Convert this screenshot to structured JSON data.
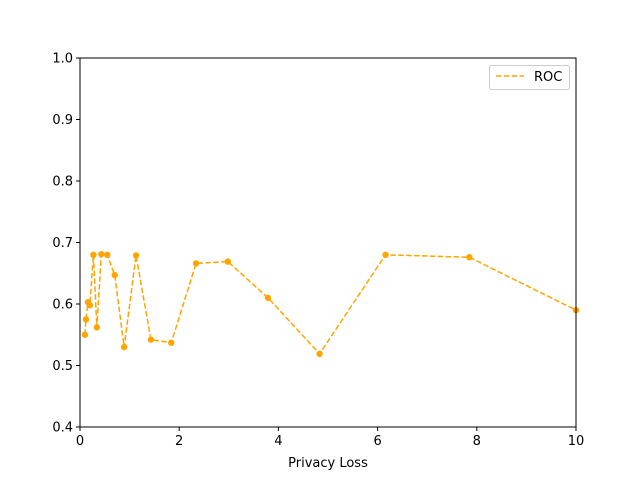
{
  "chart_data": {
    "type": "line",
    "xlabel": "Privacy Loss",
    "ylabel": "",
    "xlim": [
      0,
      10
    ],
    "ylim": [
      0.4,
      1.0
    ],
    "x_ticks": [
      0,
      2,
      4,
      6,
      8,
      10
    ],
    "y_ticks": [
      0.4,
      0.5,
      0.6,
      0.7,
      0.8,
      0.9,
      1.0
    ],
    "x_tick_labels": [
      "0",
      "2",
      "4",
      "6",
      "8",
      "10"
    ],
    "y_tick_labels": [
      "0.4",
      "0.5",
      "0.6",
      "0.7",
      "0.8",
      "0.9",
      "1.0"
    ],
    "grid": false,
    "legend_position": "top-right",
    "series": [
      {
        "name": "ROC",
        "color": "#FFA500",
        "line_style": "dashed",
        "marker": "circle",
        "x": [
          0.1,
          0.12,
          0.16,
          0.2,
          0.27,
          0.34,
          0.43,
          0.55,
          0.7,
          0.89,
          1.13,
          1.43,
          1.84,
          2.34,
          2.98,
          3.79,
          4.83,
          6.16,
          7.85,
          10.0
        ],
        "y": [
          0.55,
          0.575,
          0.603,
          0.598,
          0.68,
          0.562,
          0.681,
          0.68,
          0.647,
          0.53,
          0.679,
          0.542,
          0.537,
          0.666,
          0.669,
          0.61,
          0.519,
          0.68,
          0.676,
          0.59
        ]
      }
    ]
  }
}
